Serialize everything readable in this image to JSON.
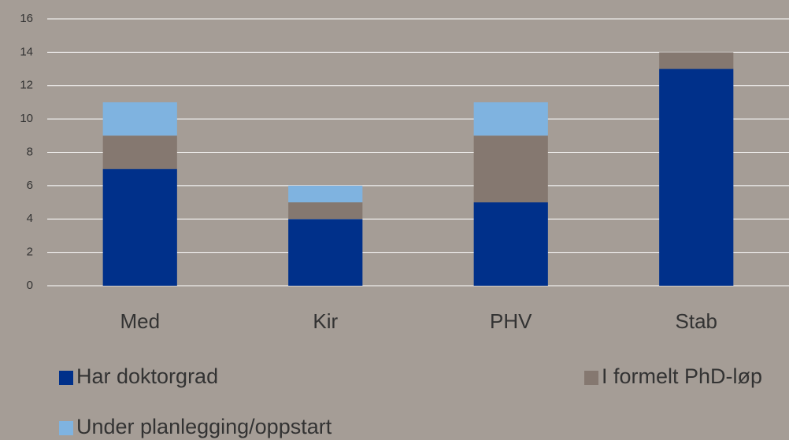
{
  "chart_data": {
    "type": "stacked_bar",
    "categories": [
      "Med",
      "Kir",
      "PHV",
      "Stab"
    ],
    "series": [
      {
        "name": "Har doktorgrad",
        "color": "#00308a",
        "values": [
          7,
          4,
          5,
          13
        ]
      },
      {
        "name": "I formelt PhD-løp",
        "color": "#857870",
        "values": [
          2,
          1,
          4,
          1
        ]
      },
      {
        "name": "Under planlegging/oppstart",
        "color": "#7fb3e0",
        "values": [
          2,
          1,
          2,
          0
        ]
      }
    ],
    "ylim": [
      0,
      16
    ],
    "yticks": [
      0,
      2,
      4,
      6,
      8,
      10,
      12,
      14,
      16
    ],
    "grid": true,
    "legend": "bottom"
  }
}
